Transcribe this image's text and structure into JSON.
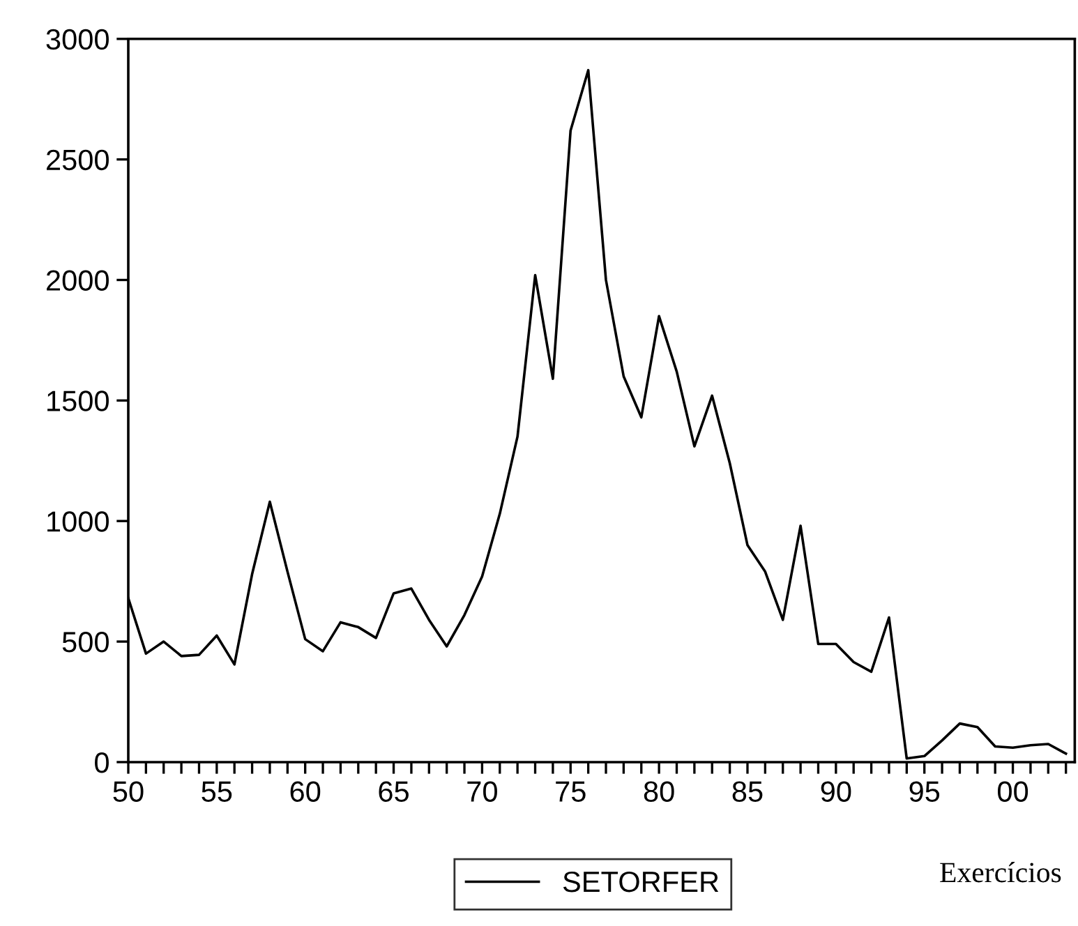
{
  "chart_data": {
    "type": "line",
    "xlabel": "Exercícios",
    "x": [
      1950,
      1951,
      1952,
      1953,
      1954,
      1955,
      1956,
      1957,
      1958,
      1959,
      1960,
      1961,
      1962,
      1963,
      1964,
      1965,
      1966,
      1967,
      1968,
      1969,
      1970,
      1971,
      1972,
      1973,
      1974,
      1975,
      1976,
      1977,
      1978,
      1979,
      1980,
      1981,
      1982,
      1983,
      1984,
      1985,
      1986,
      1987,
      1988,
      1989,
      1990,
      1991,
      1992,
      1993,
      1994,
      1995,
      1996,
      1997,
      1998,
      1999,
      2000,
      2001,
      2002,
      2003
    ],
    "series": [
      {
        "name": "SETORFER",
        "color": "#000000",
        "values": [
          680,
          450,
          500,
          440,
          445,
          525,
          405,
          780,
          1080,
          790,
          510,
          460,
          580,
          560,
          515,
          700,
          720,
          590,
          480,
          610,
          770,
          1030,
          1350,
          2020,
          1590,
          2620,
          2870,
          2000,
          1600,
          1430,
          1850,
          1620,
          1310,
          1520,
          1240,
          900,
          790,
          590,
          980,
          490,
          490,
          415,
          375,
          600,
          15,
          25,
          90,
          160,
          145,
          65,
          60,
          70,
          75,
          35
        ]
      }
    ],
    "xlim": [
      1950,
      2003.5
    ],
    "ylim": [
      0,
      3000
    ],
    "xticks": [
      {
        "value": 1950,
        "label": "50"
      },
      {
        "value": 1951,
        "label": null
      },
      {
        "value": 1952,
        "label": null
      },
      {
        "value": 1953,
        "label": null
      },
      {
        "value": 1954,
        "label": null
      },
      {
        "value": 1955,
        "label": "55"
      },
      {
        "value": 1956,
        "label": null
      },
      {
        "value": 1957,
        "label": null
      },
      {
        "value": 1958,
        "label": null
      },
      {
        "value": 1959,
        "label": null
      },
      {
        "value": 1960,
        "label": "60"
      },
      {
        "value": 1961,
        "label": null
      },
      {
        "value": 1962,
        "label": null
      },
      {
        "value": 1963,
        "label": null
      },
      {
        "value": 1964,
        "label": null
      },
      {
        "value": 1965,
        "label": "65"
      },
      {
        "value": 1966,
        "label": null
      },
      {
        "value": 1967,
        "label": null
      },
      {
        "value": 1968,
        "label": null
      },
      {
        "value": 1969,
        "label": null
      },
      {
        "value": 1970,
        "label": "70"
      },
      {
        "value": 1971,
        "label": null
      },
      {
        "value": 1972,
        "label": null
      },
      {
        "value": 1973,
        "label": null
      },
      {
        "value": 1974,
        "label": null
      },
      {
        "value": 1975,
        "label": "75"
      },
      {
        "value": 1976,
        "label": null
      },
      {
        "value": 1977,
        "label": null
      },
      {
        "value": 1978,
        "label": null
      },
      {
        "value": 1979,
        "label": null
      },
      {
        "value": 1980,
        "label": "80"
      },
      {
        "value": 1981,
        "label": null
      },
      {
        "value": 1982,
        "label": null
      },
      {
        "value": 1983,
        "label": null
      },
      {
        "value": 1984,
        "label": null
      },
      {
        "value": 1985,
        "label": "85"
      },
      {
        "value": 1986,
        "label": null
      },
      {
        "value": 1987,
        "label": null
      },
      {
        "value": 1988,
        "label": null
      },
      {
        "value": 1989,
        "label": null
      },
      {
        "value": 1990,
        "label": "90"
      },
      {
        "value": 1991,
        "label": null
      },
      {
        "value": 1992,
        "label": null
      },
      {
        "value": 1993,
        "label": null
      },
      {
        "value": 1994,
        "label": null
      },
      {
        "value": 1995,
        "label": "95"
      },
      {
        "value": 1996,
        "label": null
      },
      {
        "value": 1997,
        "label": null
      },
      {
        "value": 1998,
        "label": null
      },
      {
        "value": 1999,
        "label": null
      },
      {
        "value": 2000,
        "label": "00"
      },
      {
        "value": 2001,
        "label": null
      },
      {
        "value": 2002,
        "label": null
      },
      {
        "value": 2003,
        "label": null
      }
    ],
    "yticks": [
      0,
      500,
      1000,
      1500,
      2000,
      2500,
      3000
    ],
    "grid": false,
    "legend": "bottom",
    "marker": "none",
    "line_style": "solid"
  }
}
